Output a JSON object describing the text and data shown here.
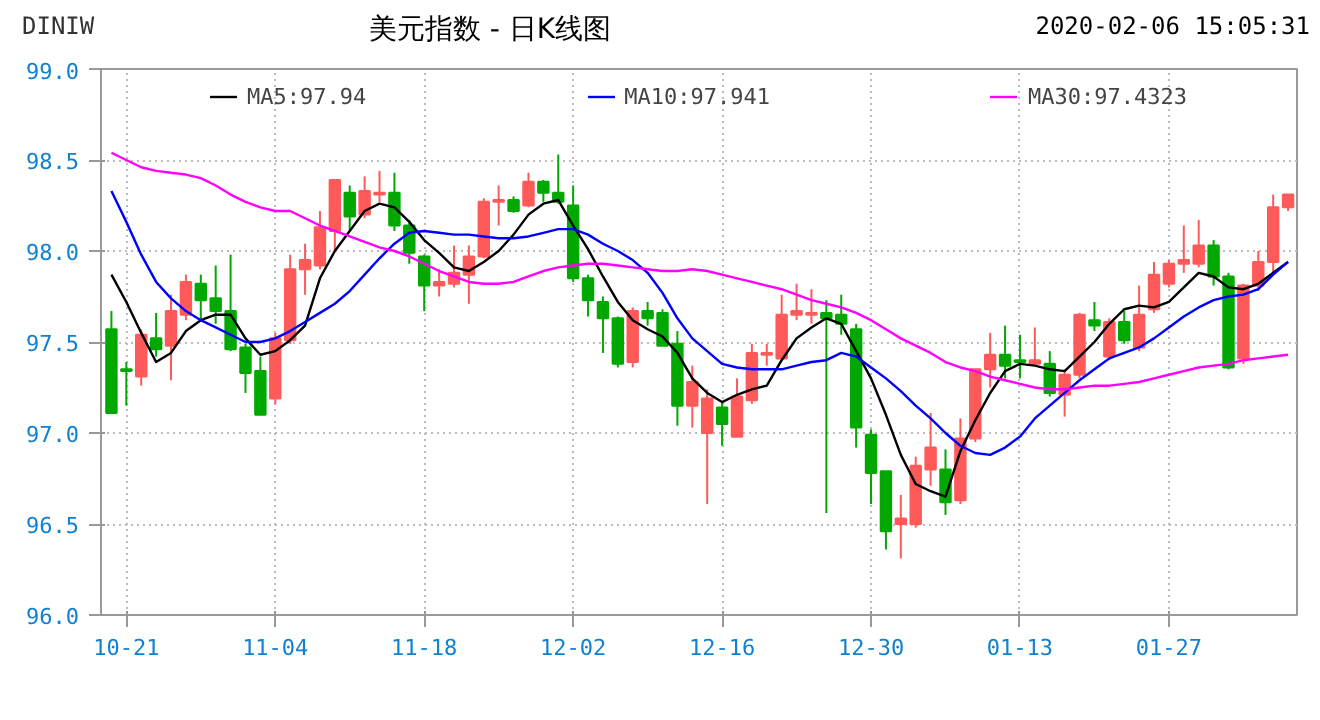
{
  "chart_data": {
    "type": "candlestick",
    "title": "美元指数 - 日K线图",
    "annotations": [
      "DINIW",
      "2020-02-06 15:05:31"
    ],
    "categories": [
      null,
      "10-21",
      null,
      null,
      null,
      null,
      null,
      null,
      null,
      null,
      null,
      "11-04",
      null,
      null,
      null,
      null,
      null,
      null,
      null,
      null,
      null,
      "11-18",
      null,
      null,
      null,
      null,
      null,
      null,
      null,
      null,
      null,
      "12-02",
      null,
      null,
      null,
      null,
      null,
      null,
      null,
      null,
      null,
      "12-16",
      null,
      null,
      null,
      null,
      null,
      null,
      null,
      null,
      null,
      "12-30",
      null,
      null,
      null,
      null,
      null,
      null,
      null,
      null,
      null,
      "01-13",
      null,
      null,
      null,
      null,
      null,
      null,
      null,
      null,
      null,
      "01-27",
      null,
      null,
      null,
      null,
      null,
      null,
      null,
      null
    ],
    "ohlc": [
      [
        97.57,
        97.67,
        97.11,
        97.11
      ],
      [
        97.35,
        97.39,
        97.15,
        97.34
      ],
      [
        97.31,
        97.57,
        97.26,
        97.54
      ],
      [
        97.52,
        97.66,
        97.42,
        97.46
      ],
      [
        97.48,
        97.76,
        97.29,
        97.67
      ],
      [
        97.65,
        97.87,
        97.62,
        97.83
      ],
      [
        97.82,
        97.87,
        97.61,
        97.73
      ],
      [
        97.74,
        97.92,
        97.6,
        97.67
      ],
      [
        97.67,
        97.98,
        97.45,
        97.46
      ],
      [
        97.47,
        97.49,
        97.22,
        97.33
      ],
      [
        97.34,
        97.42,
        97.1,
        97.1
      ],
      [
        97.19,
        97.55,
        97.16,
        97.52
      ],
      [
        97.51,
        97.98,
        97.49,
        97.9
      ],
      [
        97.9,
        98.04,
        97.76,
        97.95
      ],
      [
        97.92,
        98.22,
        97.9,
        98.13
      ],
      [
        98.11,
        98.39,
        98.0,
        98.39
      ],
      [
        98.32,
        98.36,
        98.11,
        98.19
      ],
      [
        98.2,
        98.41,
        98.18,
        98.33
      ],
      [
        98.31,
        98.44,
        98.27,
        98.32
      ],
      [
        98.32,
        98.43,
        98.11,
        98.14
      ],
      [
        98.14,
        98.17,
        97.93,
        97.99
      ],
      [
        97.97,
        97.98,
        97.67,
        97.81
      ],
      [
        97.81,
        97.9,
        97.75,
        97.83
      ],
      [
        97.82,
        98.03,
        97.8,
        97.88
      ],
      [
        97.87,
        98.03,
        97.71,
        97.97
      ],
      [
        97.97,
        98.29,
        97.96,
        98.27
      ],
      [
        98.27,
        98.36,
        98.14,
        98.28
      ],
      [
        98.28,
        98.3,
        98.21,
        98.22
      ],
      [
        98.25,
        98.43,
        98.24,
        98.38
      ],
      [
        98.38,
        98.39,
        98.27,
        98.32
      ],
      [
        98.32,
        98.53,
        98.26,
        98.27
      ],
      [
        98.25,
        98.36,
        97.83,
        97.85
      ],
      [
        97.85,
        97.87,
        97.64,
        97.73
      ],
      [
        97.72,
        97.75,
        97.44,
        97.63
      ],
      [
        97.63,
        97.64,
        97.36,
        97.38
      ],
      [
        97.39,
        97.69,
        97.36,
        97.67
      ],
      [
        97.67,
        97.72,
        97.59,
        97.63
      ],
      [
        97.66,
        97.68,
        97.48,
        97.48
      ],
      [
        97.49,
        97.56,
        97.04,
        97.15
      ],
      [
        97.15,
        97.37,
        97.03,
        97.28
      ],
      [
        97.0,
        97.24,
        96.61,
        97.19
      ],
      [
        97.14,
        97.17,
        96.93,
        97.05
      ],
      [
        96.98,
        97.3,
        96.98,
        97.2
      ],
      [
        97.18,
        97.49,
        97.16,
        97.44
      ],
      [
        97.43,
        97.49,
        97.37,
        97.44
      ],
      [
        97.41,
        97.76,
        97.4,
        97.65
      ],
      [
        97.65,
        97.82,
        97.62,
        97.67
      ],
      [
        97.65,
        97.79,
        97.6,
        97.66
      ],
      [
        97.66,
        97.73,
        96.56,
        97.63
      ],
      [
        97.65,
        97.76,
        97.54,
        97.6
      ],
      [
        97.57,
        97.6,
        96.92,
        97.03
      ],
      [
        96.99,
        97.02,
        96.61,
        96.78
      ],
      [
        96.79,
        96.79,
        96.36,
        96.46
      ],
      [
        96.5,
        96.66,
        96.31,
        96.53
      ],
      [
        96.5,
        96.87,
        96.48,
        96.82
      ],
      [
        96.8,
        97.11,
        96.71,
        96.92
      ],
      [
        96.8,
        96.91,
        96.55,
        96.62
      ],
      [
        96.63,
        97.08,
        96.61,
        96.97
      ],
      [
        96.97,
        97.35,
        96.95,
        97.35
      ],
      [
        97.35,
        97.55,
        97.25,
        97.43
      ],
      [
        97.43,
        97.59,
        97.3,
        97.37
      ],
      [
        97.4,
        97.54,
        97.3,
        97.39
      ],
      [
        97.38,
        97.58,
        97.37,
        97.4
      ],
      [
        97.38,
        97.45,
        97.2,
        97.22
      ],
      [
        97.21,
        97.35,
        97.09,
        97.32
      ],
      [
        97.32,
        97.66,
        97.3,
        97.65
      ],
      [
        97.62,
        97.72,
        97.56,
        97.59
      ],
      [
        97.42,
        97.63,
        97.4,
        97.61
      ],
      [
        97.61,
        97.67,
        97.49,
        97.51
      ],
      [
        97.47,
        97.81,
        97.45,
        97.65
      ],
      [
        97.68,
        97.94,
        97.66,
        97.87
      ],
      [
        97.82,
        97.95,
        97.8,
        97.93
      ],
      [
        97.93,
        98.14,
        97.88,
        97.95
      ],
      [
        97.93,
        98.17,
        97.91,
        98.03
      ],
      [
        98.03,
        98.06,
        97.81,
        97.86
      ],
      [
        97.86,
        97.88,
        97.35,
        97.36
      ],
      [
        97.41,
        97.82,
        97.38,
        97.81
      ],
      [
        97.81,
        98.0,
        97.78,
        97.94
      ],
      [
        97.94,
        98.31,
        97.88,
        98.24
      ],
      [
        98.24,
        98.31,
        98.22,
        98.31
      ]
    ],
    "colors": [
      "#00a800",
      "#00a800",
      "#ff5a5a",
      "#00a800",
      "#ff5a5a",
      "#ff5a5a",
      "#00a800",
      "#00a800",
      "#00a800",
      "#00a800",
      "#00a800",
      "#ff5a5a",
      "#ff5a5a",
      "#ff5a5a",
      "#ff5a5a",
      "#ff5a5a",
      "#00a800",
      "#ff5a5a",
      "#ff5a5a",
      "#00a800",
      "#00a800",
      "#00a800",
      "#ff5a5a",
      "#ff5a5a",
      "#ff5a5a",
      "#ff5a5a",
      "#ff5a5a",
      "#00a800",
      "#ff5a5a",
      "#00a800",
      "#00a800",
      "#00a800",
      "#00a800",
      "#00a800",
      "#00a800",
      "#ff5a5a",
      "#00a800",
      "#00a800",
      "#00a800",
      "#ff5a5a",
      "#ff5a5a",
      "#00a800",
      "#ff5a5a",
      "#ff5a5a",
      "#ff5a5a",
      "#ff5a5a",
      "#ff5a5a",
      "#ff5a5a",
      "#00a800",
      "#00a800",
      "#00a800",
      "#00a800",
      "#00a800",
      "#ff5a5a",
      "#ff5a5a",
      "#ff5a5a",
      "#00a800",
      "#ff5a5a",
      "#ff5a5a",
      "#ff5a5a",
      "#00a800",
      "#00a800",
      "#ff5a5a",
      "#00a800",
      "#ff5a5a",
      "#ff5a5a",
      "#00a800",
      "#ff5a5a",
      "#00a800",
      "#ff5a5a",
      "#ff5a5a",
      "#ff5a5a",
      "#ff5a5a",
      "#ff5a5a",
      "#00a800",
      "#00a800",
      "#ff5a5a",
      "#ff5a5a",
      "#ff5a5a",
      "#ff5a5a"
    ],
    "series": [
      {
        "name": "MA5:97.94",
        "type": "line",
        "color": "#000000",
        "values": [
          97.87,
          97.72,
          97.55,
          97.39,
          97.44,
          97.56,
          97.62,
          97.65,
          97.65,
          97.52,
          97.43,
          97.45,
          97.51,
          97.59,
          97.85,
          98.0,
          98.11,
          98.22,
          98.26,
          98.24,
          98.16,
          98.06,
          97.99,
          97.91,
          97.89,
          97.94,
          98.0,
          98.09,
          98.2,
          98.26,
          98.28,
          98.14,
          98.01,
          97.86,
          97.72,
          97.62,
          97.57,
          97.53,
          97.44,
          97.3,
          97.22,
          97.17,
          97.21,
          97.24,
          97.26,
          97.4,
          97.52,
          97.58,
          97.63,
          97.6,
          97.45,
          97.3,
          97.1,
          96.88,
          96.72,
          96.68,
          96.65,
          96.9,
          97.07,
          97.22,
          97.34,
          97.38,
          97.37,
          97.35,
          97.34,
          97.42,
          97.5,
          97.6,
          97.68,
          97.7,
          97.69,
          97.72,
          97.8,
          97.88,
          97.86,
          97.8,
          97.79,
          97.82,
          97.88,
          97.94
        ]
      },
      {
        "name": "MA10:97.941",
        "type": "line",
        "color": "#0000ff",
        "values": [
          98.33,
          98.16,
          97.98,
          97.83,
          97.74,
          97.67,
          97.62,
          97.58,
          97.54,
          97.5,
          97.5,
          97.52,
          97.56,
          97.61,
          97.66,
          97.71,
          97.78,
          97.87,
          97.96,
          98.04,
          98.1,
          98.11,
          98.1,
          98.09,
          98.09,
          98.08,
          98.07,
          98.07,
          98.08,
          98.1,
          98.12,
          98.12,
          98.09,
          98.04,
          98.0,
          97.95,
          97.88,
          97.77,
          97.63,
          97.52,
          97.45,
          97.38,
          97.36,
          97.35,
          97.35,
          97.35,
          97.37,
          97.39,
          97.4,
          97.44,
          97.42,
          97.36,
          97.3,
          97.23,
          97.15,
          97.08,
          97.0,
          96.93,
          96.89,
          96.88,
          96.92,
          96.98,
          97.08,
          97.15,
          97.22,
          97.29,
          97.35,
          97.41,
          97.44,
          97.47,
          97.52,
          97.58,
          97.64,
          97.69,
          97.73,
          97.75,
          97.76,
          97.79,
          97.87,
          97.94
        ]
      },
      {
        "name": "MA30:97.4323",
        "type": "line",
        "color": "#ff00ff",
        "values": [
          98.54,
          98.5,
          98.46,
          98.44,
          98.43,
          98.42,
          98.4,
          98.36,
          98.31,
          98.27,
          98.24,
          98.22,
          98.22,
          98.18,
          98.14,
          98.11,
          98.08,
          98.05,
          98.02,
          98.0,
          97.97,
          97.93,
          97.89,
          97.86,
          97.83,
          97.82,
          97.82,
          97.83,
          97.86,
          97.89,
          97.91,
          97.92,
          97.93,
          97.93,
          97.92,
          97.91,
          97.9,
          97.89,
          97.89,
          97.9,
          97.89,
          97.87,
          97.85,
          97.83,
          97.81,
          97.79,
          97.76,
          97.73,
          97.71,
          97.69,
          97.66,
          97.62,
          97.57,
          97.52,
          97.48,
          97.44,
          97.39,
          97.36,
          97.34,
          97.31,
          97.29,
          97.27,
          97.25,
          97.24,
          97.24,
          97.25,
          97.26,
          97.26,
          97.27,
          97.28,
          97.3,
          97.32,
          97.34,
          97.36,
          97.37,
          97.38,
          97.4,
          97.41,
          97.42,
          97.43
        ]
      }
    ],
    "ylim": [
      96,
      99
    ],
    "yticks": [
      {
        "value": 96,
        "label": "96.0"
      },
      {
        "value": 96.5,
        "label": "96.5"
      },
      {
        "value": 97,
        "label": "97.0"
      },
      {
        "value": 97.5,
        "label": "97.5"
      },
      {
        "value": 98,
        "label": "98.0"
      },
      {
        "value": 98.5,
        "label": "98.5"
      },
      {
        "value": 99,
        "label": "99.0"
      }
    ],
    "grid": true,
    "legend": "top",
    "marker": "none",
    "line_style": "solid"
  }
}
